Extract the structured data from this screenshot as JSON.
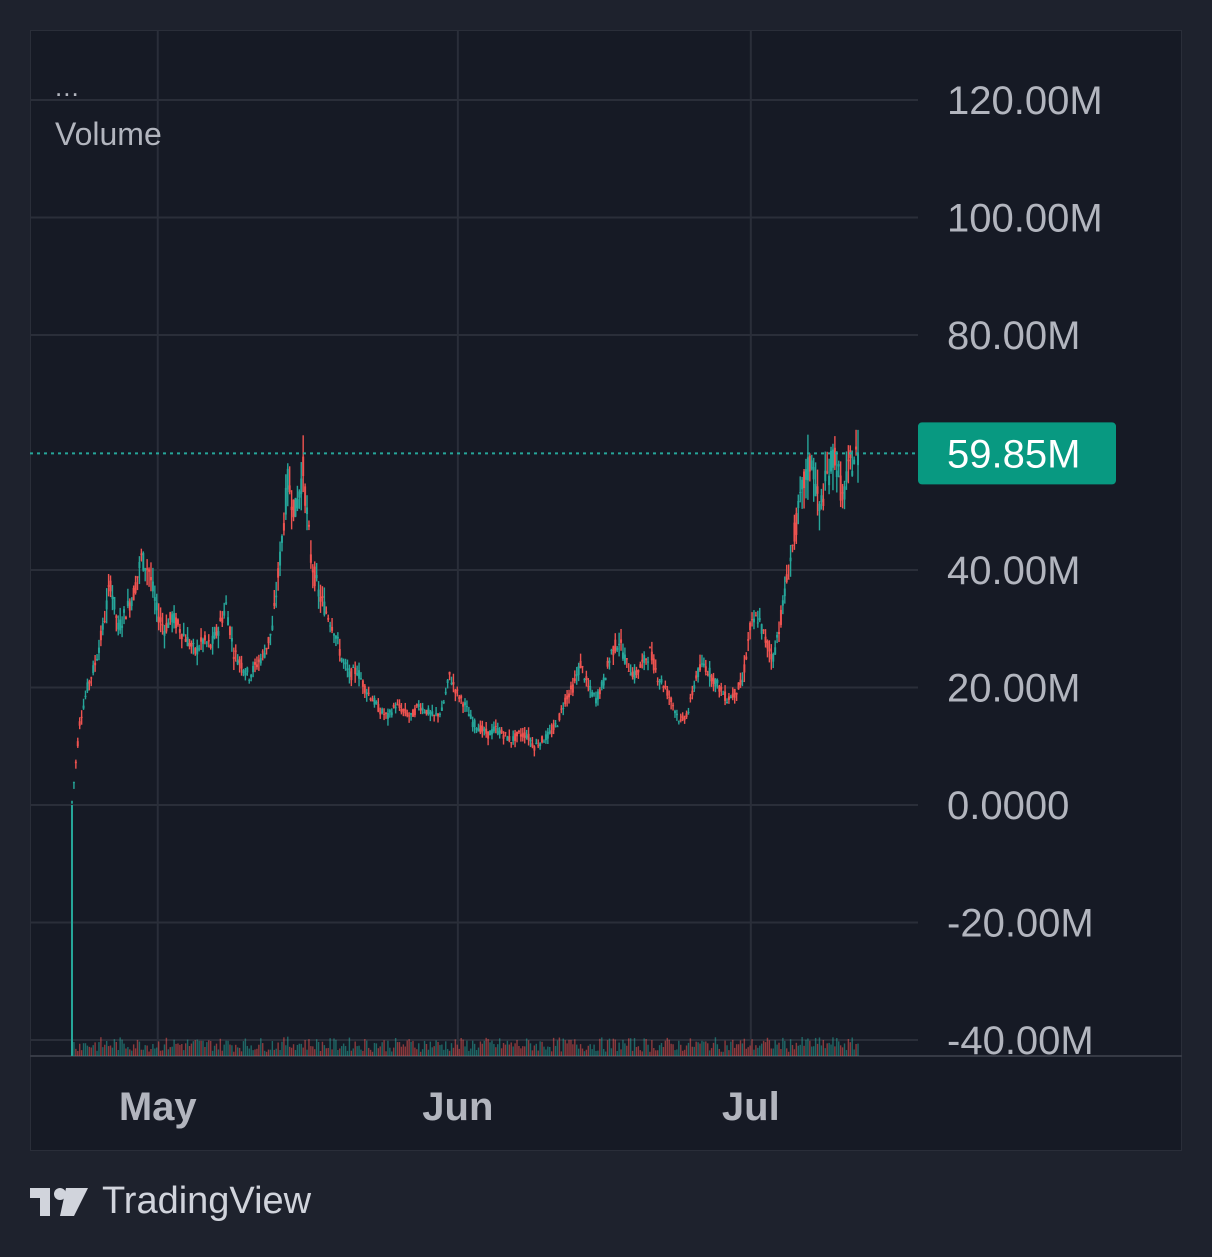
{
  "legend": {
    "dots": "...",
    "title": "Volume"
  },
  "brand": {
    "name": "TradingView"
  },
  "colors": {
    "background": "#1e222d",
    "panel": "#161a25",
    "grid": "#2a2e39",
    "axis_text": "#b2b5be",
    "up": "#26a69a",
    "down": "#ef5350",
    "badge": "#089981"
  },
  "chart_data": {
    "type": "candlestick",
    "y_axis": {
      "ticks": [
        {
          "value": 120,
          "label": "120.00M"
        },
        {
          "value": 100,
          "label": "100.00M"
        },
        {
          "value": 80,
          "label": "80.00M"
        },
        {
          "value": 40,
          "label": "40.00M"
        },
        {
          "value": 20,
          "label": "20.00M"
        },
        {
          "value": 0,
          "label": "0.0000"
        },
        {
          "value": -20,
          "label": "-20.00M"
        },
        {
          "value": -40,
          "label": "-40.00M"
        }
      ],
      "unit": "M",
      "range": [
        -42,
        132
      ]
    },
    "x_axis": {
      "ticks": [
        {
          "index": 12,
          "label": "May"
        },
        {
          "index": 54,
          "label": "Jun"
        },
        {
          "index": 95,
          "label": "Jul"
        }
      ],
      "range": [
        0,
        110
      ]
    },
    "last_value": {
      "value": 59.85,
      "label": "59.85M"
    },
    "close_series": [
      0.5,
      14,
      20,
      24,
      30,
      38,
      30,
      33,
      36,
      42,
      40,
      33,
      30,
      32,
      30,
      28,
      26,
      28,
      27,
      30,
      34,
      26,
      24,
      22,
      24,
      26,
      30,
      42,
      55,
      50,
      57,
      42,
      36,
      33,
      30,
      25,
      22,
      23,
      20,
      18,
      16,
      15,
      17,
      16,
      15,
      17,
      16,
      15,
      16,
      22,
      19,
      17,
      14,
      13,
      12,
      13,
      12,
      11,
      12,
      12,
      10,
      11,
      12,
      14,
      18,
      20,
      24,
      20,
      18,
      21,
      26,
      28,
      24,
      22,
      24,
      26,
      22,
      20,
      17,
      14,
      16,
      22,
      24,
      22,
      20,
      18,
      19,
      21,
      30,
      32,
      28,
      25,
      32,
      40,
      48,
      55,
      59,
      50,
      56,
      60,
      52,
      58,
      59.85
    ]
  }
}
